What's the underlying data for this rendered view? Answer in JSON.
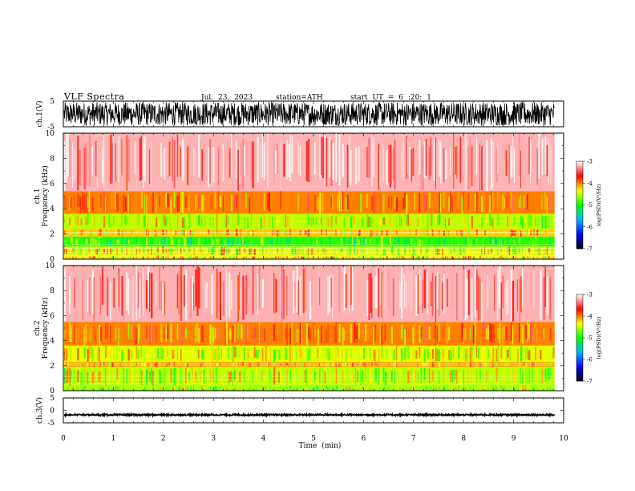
{
  "header": {
    "title": "VLF Spectra",
    "date": "Jul. 23, 2023",
    "station": "station=ATH",
    "start_ut": "start UT = 6 :20: 1"
  },
  "chart_data": [
    {
      "type": "line",
      "panel": "ch1-waveform",
      "ylabel": "ch.1(V)",
      "ylim": [
        -5,
        5
      ],
      "ytick_labels": [
        "5",
        "-5"
      ],
      "xlim": [
        0,
        10
      ],
      "data_end_min": 9.82,
      "note_amplitude_range_V": [
        -4.6,
        4.6
      ]
    },
    {
      "type": "heatmap",
      "panel": "ch1-spectrogram",
      "ylabel_line1": "ch.1",
      "ylabel_line2": "Frequency (kHz)",
      "ylim": [
        0,
        10
      ],
      "ytick_labels": [
        "0",
        "2",
        "4",
        "6",
        "8",
        "10"
      ],
      "xlim": [
        0,
        10
      ],
      "data_end_min": 9.82,
      "colorbar": {
        "label": "log(PSD)(V²/Hz)",
        "range": [
          -7,
          -3
        ],
        "tick_labels": [
          "-3",
          "-4",
          "-5",
          "-6",
          "-7"
        ]
      },
      "bands_kHz": [
        {
          "f": [
            0,
            0.3
          ],
          "level": -4.3
        },
        {
          "f": [
            0.3,
            1.0
          ],
          "level": -4.4
        },
        {
          "f": [
            1.0,
            1.8
          ],
          "level": -4.9
        },
        {
          "f": [
            1.8,
            2.4
          ],
          "level": -4.2
        },
        {
          "f": [
            2.4,
            3.6
          ],
          "level": -4.5
        },
        {
          "f": [
            3.6,
            5.4
          ],
          "level": -4.0
        },
        {
          "f": [
            5.4,
            10.0
          ],
          "level": -3.2
        }
      ]
    },
    {
      "type": "heatmap",
      "panel": "ch2-spectrogram",
      "ylabel_line1": "ch.2",
      "ylabel_line2": "Frequency (kHz)",
      "ylim": [
        0,
        10
      ],
      "ytick_labels": [
        "0",
        "2",
        "4",
        "6",
        "8",
        "10"
      ],
      "xlim": [
        0,
        10
      ],
      "data_end_min": 9.82,
      "colorbar": {
        "label": "log(PSD)(V²/Hz)",
        "range": [
          -7,
          -3
        ],
        "tick_labels": [
          "-3",
          "-4",
          "-5",
          "-6",
          "-7"
        ]
      },
      "bands_kHz": [
        {
          "f": [
            0,
            0.4
          ],
          "level": -4.6
        },
        {
          "f": [
            0.4,
            1.9
          ],
          "level": -4.5
        },
        {
          "f": [
            1.9,
            2.3
          ],
          "level": -4.1
        },
        {
          "f": [
            2.3,
            3.6
          ],
          "level": -4.4
        },
        {
          "f": [
            3.6,
            5.5
          ],
          "level": -4.0
        },
        {
          "f": [
            5.5,
            10.0
          ],
          "level": -3.2
        }
      ]
    },
    {
      "type": "line",
      "panel": "ch3-waveform",
      "ylabel": "ch.3(V)",
      "ylim": [
        -5,
        5
      ],
      "ytick_labels": [
        "5",
        "0",
        "-5"
      ],
      "xlim": [
        0,
        10
      ],
      "data_end_min": 9.82,
      "level_V": -1.8,
      "note_amplitude_range_V": [
        -2.1,
        -1.5
      ]
    }
  ],
  "x_axis": {
    "label": "Time (min)",
    "tick_labels": [
      "0",
      "1",
      "2",
      "3",
      "4",
      "5",
      "6",
      "7",
      "8",
      "9",
      "10"
    ]
  },
  "colors": {
    "colormap": [
      "#000000",
      "#0000ff",
      "#00b4ff",
      "#00ff00",
      "#ffff00",
      "#ff0000",
      "#ffffff"
    ]
  }
}
